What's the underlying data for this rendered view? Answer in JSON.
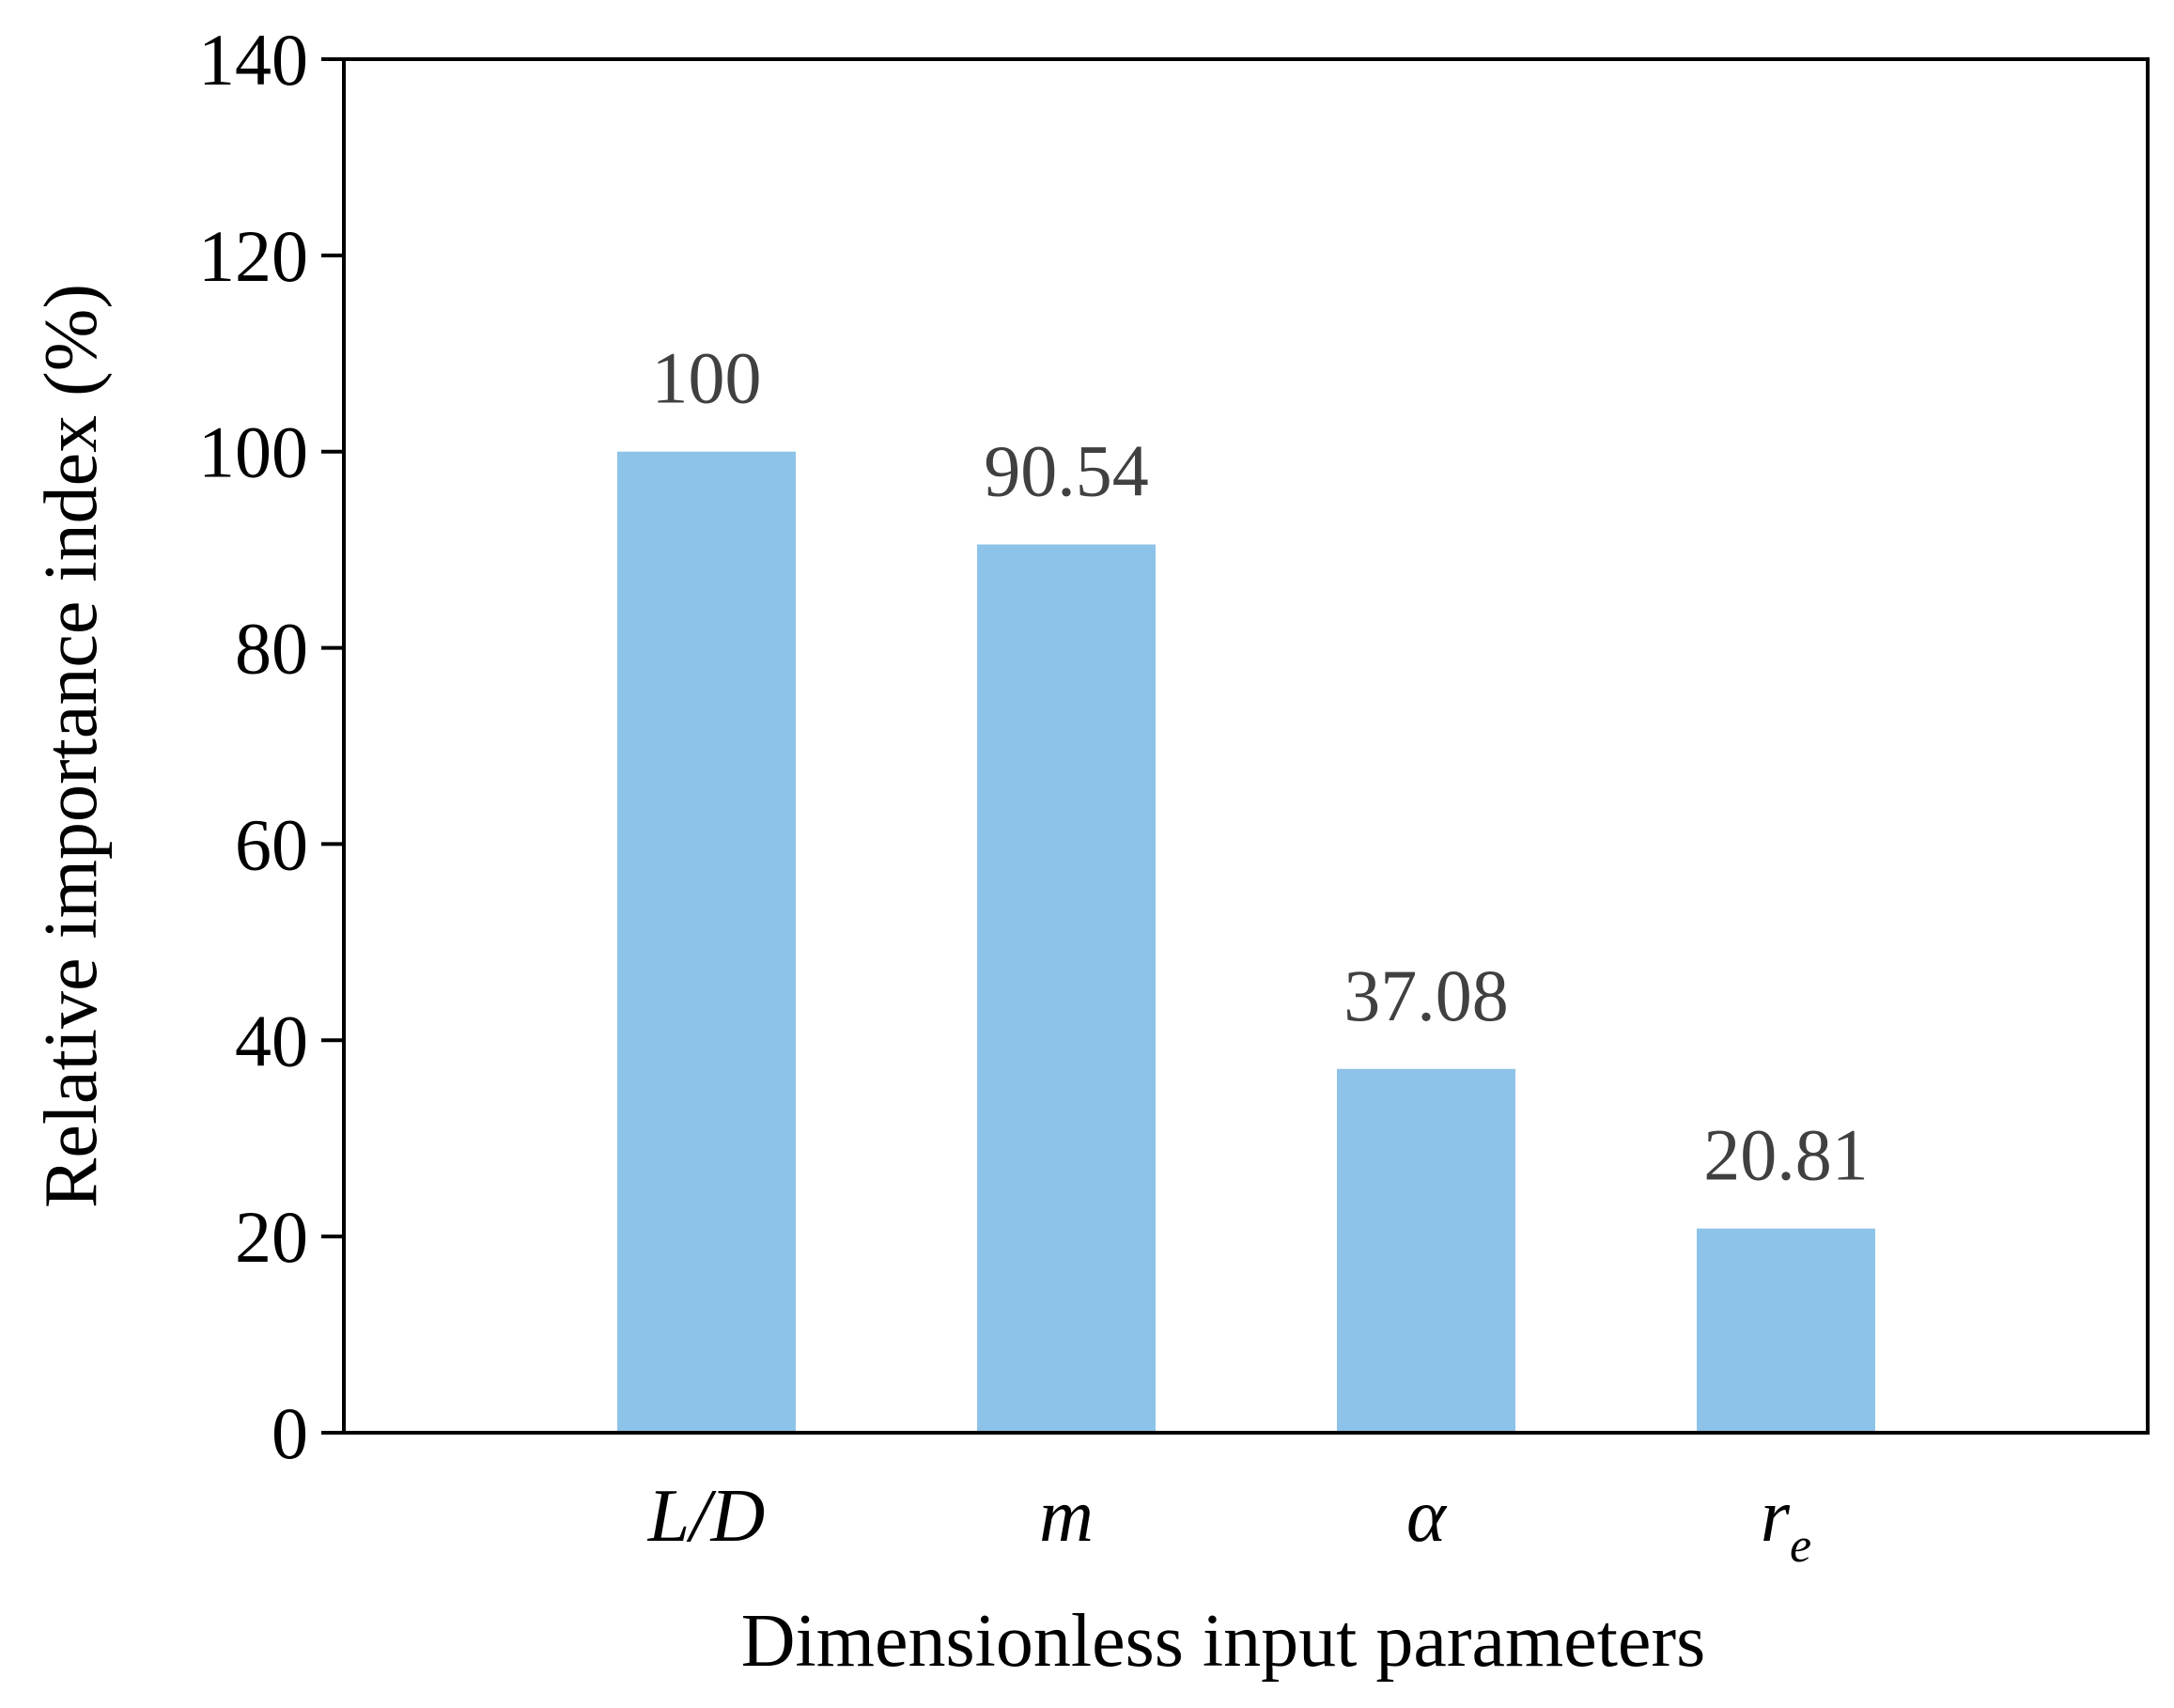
{
  "chart_data": {
    "type": "bar",
    "title": "",
    "xlabel": "Dimensionless input parameters",
    "ylabel": "Relative importance index (%)",
    "ylim": [
      0,
      140
    ],
    "yticks": [
      0,
      20,
      40,
      60,
      80,
      100,
      120,
      140
    ],
    "grid": false,
    "legend": "none",
    "categories": [
      {
        "base": "L/D",
        "sub": ""
      },
      {
        "base": "m",
        "sub": ""
      },
      {
        "base": "α",
        "sub": ""
      },
      {
        "base": "r",
        "sub": "e"
      }
    ],
    "values": [
      100,
      90.54,
      37.08,
      20.81
    ],
    "data_labels": [
      "100",
      "90.54",
      "37.08",
      "20.81"
    ],
    "colors": {
      "bar": "#8dc3e8",
      "axis": "#000000",
      "data_label": "#404040"
    }
  }
}
